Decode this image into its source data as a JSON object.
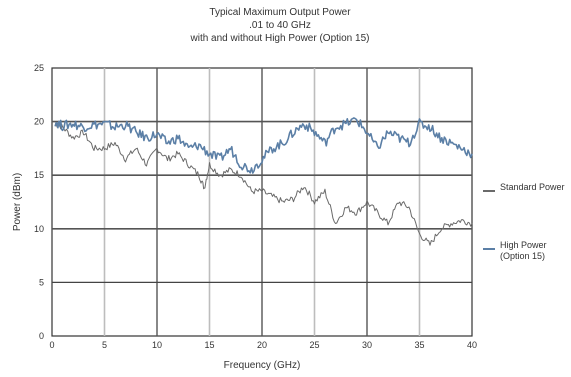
{
  "chart_data": {
    "type": "line",
    "title": "Typical Maximum Output Power",
    "subtitle": ".01 to 40 GHz",
    "subtitle2": "with and without High Power (Option 15)",
    "xlabel": "Frequency (GHz)",
    "ylabel": "Power (dBm)",
    "xlim": [
      0,
      40
    ],
    "ylim": [
      0,
      25
    ],
    "x_ticks": [
      "0",
      "5",
      "10",
      "15",
      "20",
      "25",
      "30",
      "35",
      "40"
    ],
    "y_ticks": [
      "0",
      "5",
      "10",
      "15",
      "20",
      "25"
    ],
    "grid": true,
    "legend_position": "right",
    "series": [
      {
        "name": "Standard Power",
        "color": "#6a6a6a",
        "x": [
          0.3,
          1,
          2,
          3,
          4,
          5,
          6,
          7,
          8,
          9,
          10,
          11,
          12,
          13,
          14,
          14.5,
          15,
          16,
          17,
          18,
          19,
          20,
          21,
          22,
          23,
          24,
          25,
          26,
          27,
          28,
          29,
          30,
          31,
          32,
          33,
          34,
          35,
          36,
          37,
          38,
          39,
          40
        ],
        "y": [
          19.8,
          19.5,
          18.5,
          19.0,
          17.5,
          17.5,
          18.0,
          16.5,
          17.5,
          16.0,
          17.5,
          16.5,
          17.0,
          16.0,
          15.0,
          13.8,
          16.0,
          15.0,
          15.5,
          15.0,
          13.5,
          13.5,
          13.0,
          12.5,
          12.8,
          14.0,
          12.5,
          13.5,
          10.5,
          12.0,
          11.5,
          12.5,
          11.5,
          10.5,
          12.5,
          12.0,
          9.5,
          8.5,
          10.0,
          10.5,
          10.8,
          10.5
        ]
      },
      {
        "name": "High Power (Option 15)",
        "color": "#5b7fa6",
        "x": [
          0.3,
          1,
          2,
          3,
          4,
          5,
          6,
          7,
          8,
          9,
          10,
          11,
          12,
          13,
          14,
          15,
          16,
          17,
          18,
          19,
          20,
          21,
          22,
          23,
          24,
          25,
          26,
          27,
          28,
          29,
          30,
          31,
          32,
          33,
          34,
          35,
          36,
          37,
          38,
          39,
          40
        ],
        "y": [
          20.0,
          19.6,
          19.8,
          19.5,
          19.7,
          19.8,
          19.5,
          19.7,
          19.0,
          18.5,
          18.8,
          18.0,
          18.5,
          17.5,
          17.8,
          17.0,
          16.5,
          17.5,
          16.0,
          15.5,
          16.5,
          17.5,
          18.0,
          19.0,
          19.8,
          19.0,
          18.0,
          19.5,
          19.8,
          20.2,
          19.0,
          17.5,
          19.0,
          18.5,
          18.0,
          19.8,
          19.5,
          18.5,
          18.0,
          17.5,
          17.0
        ]
      }
    ]
  }
}
